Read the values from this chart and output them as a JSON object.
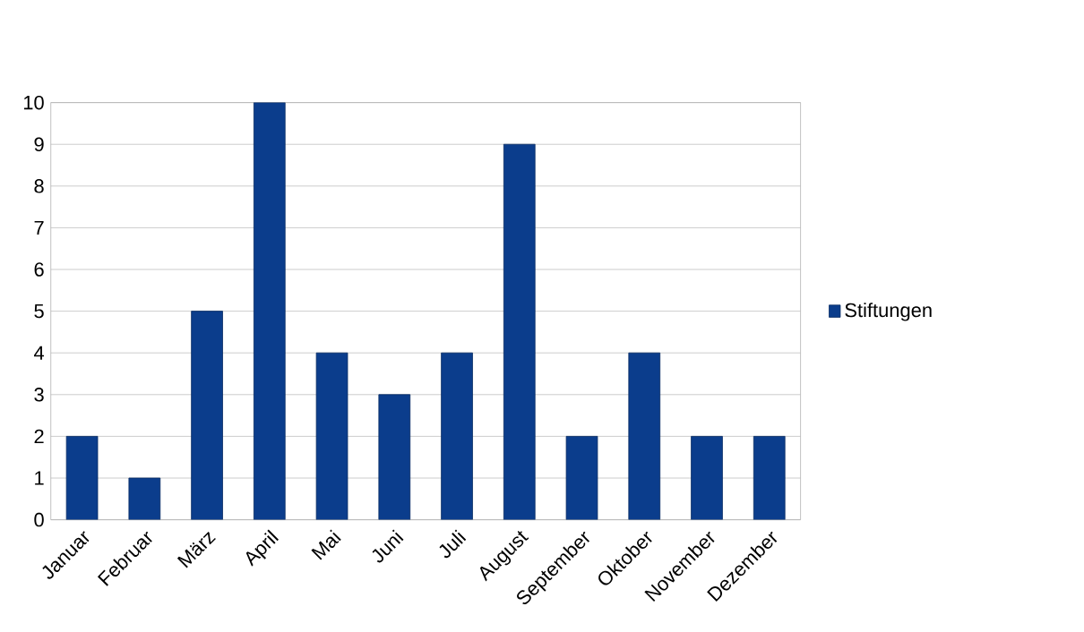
{
  "chart_data": {
    "type": "bar",
    "categories": [
      "Januar",
      "Februar",
      "März",
      "April",
      "Mai",
      "Juni",
      "Juli",
      "August",
      "September",
      "Oktober",
      "November",
      "Dezember"
    ],
    "series": [
      {
        "name": "Stiftungen",
        "color": "#0b3d8c",
        "values": [
          2,
          1,
          5,
          10,
          4,
          3,
          4,
          9,
          2,
          4,
          2,
          2
        ]
      }
    ],
    "ylim": [
      0,
      10
    ],
    "yticks": [
      0,
      1,
      2,
      3,
      4,
      5,
      6,
      7,
      8,
      9,
      10
    ],
    "grid": "y",
    "legend": "right"
  }
}
